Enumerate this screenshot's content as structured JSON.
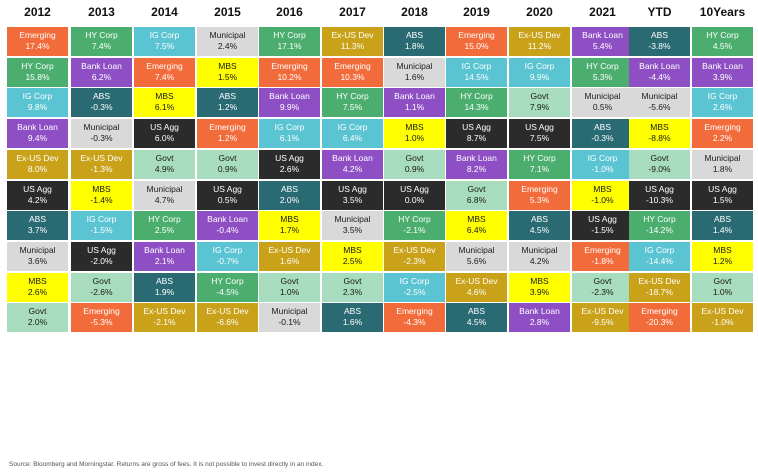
{
  "chart_data": {
    "type": "table",
    "title": "",
    "columns": [
      "2012",
      "2013",
      "2014",
      "2015",
      "2016",
      "2017",
      "2018",
      "2019",
      "2020",
      "2021",
      "YTD",
      "10Years"
    ],
    "rows": [
      [
        {
          "a": "Emerging",
          "v": "17.4%"
        },
        {
          "a": "HY Corp",
          "v": "7.4%"
        },
        {
          "a": "IG Corp",
          "v": "7.5%"
        },
        {
          "a": "Municipal",
          "v": "2.4%"
        },
        {
          "a": "HY Corp",
          "v": "17.1%"
        },
        {
          "a": "Ex-US Dev",
          "v": "11.3%"
        },
        {
          "a": "ABS",
          "v": "1.8%"
        },
        {
          "a": "Emerging",
          "v": "15.0%"
        },
        {
          "a": "Ex-US Dev",
          "v": "11.2%"
        },
        {
          "a": "Bank Loan",
          "v": "5.4%"
        },
        {
          "a": "ABS",
          "v": "-3.8%"
        },
        {
          "a": "HY Corp",
          "v": "4.5%"
        }
      ],
      [
        {
          "a": "HY Corp",
          "v": "15.8%"
        },
        {
          "a": "Bank Loan",
          "v": "6.2%"
        },
        {
          "a": "Emerging",
          "v": "7.4%"
        },
        {
          "a": "MBS",
          "v": "1.5%"
        },
        {
          "a": "Emerging",
          "v": "10.2%"
        },
        {
          "a": "Emerging",
          "v": "10.3%"
        },
        {
          "a": "Municipal",
          "v": "1.6%"
        },
        {
          "a": "IG Corp",
          "v": "14.5%"
        },
        {
          "a": "IG Corp",
          "v": "9.9%"
        },
        {
          "a": "HY Corp",
          "v": "5.3%"
        },
        {
          "a": "Bank Loan",
          "v": "-4.4%"
        },
        {
          "a": "Bank Loan",
          "v": "3.9%"
        }
      ],
      [
        {
          "a": "IG Corp",
          "v": "9.8%"
        },
        {
          "a": "ABS",
          "v": "-0.3%"
        },
        {
          "a": "MBS",
          "v": "6.1%"
        },
        {
          "a": "ABS",
          "v": "1.2%"
        },
        {
          "a": "Bank Loan",
          "v": "9.9%"
        },
        {
          "a": "HY Corp",
          "v": "7.5%"
        },
        {
          "a": "Bank Loan",
          "v": "1.1%"
        },
        {
          "a": "HY Corp",
          "v": "14.3%"
        },
        {
          "a": "Govt",
          "v": "7.9%"
        },
        {
          "a": "Municipal",
          "v": "0.5%"
        },
        {
          "a": "Municipal",
          "v": "-5.6%"
        },
        {
          "a": "IG Corp",
          "v": "2.6%"
        }
      ],
      [
        {
          "a": "Bank Loan",
          "v": "9.4%"
        },
        {
          "a": "Municipal",
          "v": "-0.3%"
        },
        {
          "a": "US Agg",
          "v": "6.0%"
        },
        {
          "a": "Emerging",
          "v": "1.2%"
        },
        {
          "a": "IG Corp",
          "v": "6.1%"
        },
        {
          "a": "IG Corp",
          "v": "6.4%"
        },
        {
          "a": "MBS",
          "v": "1.0%"
        },
        {
          "a": "US Agg",
          "v": "8.7%"
        },
        {
          "a": "US Agg",
          "v": "7.5%"
        },
        {
          "a": "ABS",
          "v": "-0.3%"
        },
        {
          "a": "MBS",
          "v": "-8.8%"
        },
        {
          "a": "Emerging",
          "v": "2.2%"
        }
      ],
      [
        {
          "a": "Ex-US Dev",
          "v": "8.0%"
        },
        {
          "a": "Ex-US Dev",
          "v": "-1.3%"
        },
        {
          "a": "Govt",
          "v": "4.9%"
        },
        {
          "a": "Govt",
          "v": "0.9%"
        },
        {
          "a": "US Agg",
          "v": "2.6%"
        },
        {
          "a": "Bank Loan",
          "v": "4.2%"
        },
        {
          "a": "Govt",
          "v": "0.9%"
        },
        {
          "a": "Bank Loan",
          "v": "8.2%"
        },
        {
          "a": "HY Corp",
          "v": "7.1%"
        },
        {
          "a": "IG Corp",
          "v": "-1.0%"
        },
        {
          "a": "Govt",
          "v": "-9.0%"
        },
        {
          "a": "Municipal",
          "v": "1.8%"
        }
      ],
      [
        {
          "a": "US Agg",
          "v": "4.2%"
        },
        {
          "a": "MBS",
          "v": "-1.4%"
        },
        {
          "a": "Municipal",
          "v": "4.7%"
        },
        {
          "a": "US Agg",
          "v": "0.5%"
        },
        {
          "a": "ABS",
          "v": "2.0%"
        },
        {
          "a": "US Agg",
          "v": "3.5%"
        },
        {
          "a": "US Agg",
          "v": "0.0%"
        },
        {
          "a": "Govt",
          "v": "6.8%"
        },
        {
          "a": "Emerging",
          "v": "5.3%"
        },
        {
          "a": "MBS",
          "v": "-1.0%"
        },
        {
          "a": "US Agg",
          "v": "-10.3%"
        },
        {
          "a": "US Agg",
          "v": "1.5%"
        }
      ],
      [
        {
          "a": "ABS",
          "v": "3.7%"
        },
        {
          "a": "IG Corp",
          "v": "-1.5%"
        },
        {
          "a": "HY Corp",
          "v": "2.5%"
        },
        {
          "a": "Bank Loan",
          "v": "-0.4%"
        },
        {
          "a": "MBS",
          "v": "1.7%"
        },
        {
          "a": "Municipal",
          "v": "3.5%"
        },
        {
          "a": "HY Corp",
          "v": "-2.1%"
        },
        {
          "a": "MBS",
          "v": "6.4%"
        },
        {
          "a": "ABS",
          "v": "4.5%"
        },
        {
          "a": "US Agg",
          "v": "-1.5%"
        },
        {
          "a": "HY Corp",
          "v": "-14.2%"
        },
        {
          "a": "ABS",
          "v": "1.4%"
        }
      ],
      [
        {
          "a": "Municipal",
          "v": "3.6%"
        },
        {
          "a": "US Agg",
          "v": "-2.0%"
        },
        {
          "a": "Bank Loan",
          "v": "2.1%"
        },
        {
          "a": "IG Corp",
          "v": "-0.7%"
        },
        {
          "a": "Ex-US Dev",
          "v": "1.6%"
        },
        {
          "a": "MBS",
          "v": "2.5%"
        },
        {
          "a": "Ex-US Dev",
          "v": "-2.3%"
        },
        {
          "a": "Municipal",
          "v": "5.6%"
        },
        {
          "a": "Municipal",
          "v": "4.2%"
        },
        {
          "a": "Emerging",
          "v": "-1.8%"
        },
        {
          "a": "IG Corp",
          "v": "-14.4%"
        },
        {
          "a": "MBS",
          "v": "1.2%"
        }
      ],
      [
        {
          "a": "MBS",
          "v": "2.6%"
        },
        {
          "a": "Govt",
          "v": "-2.6%"
        },
        {
          "a": "ABS",
          "v": "1.9%"
        },
        {
          "a": "HY Corp",
          "v": "-4.5%"
        },
        {
          "a": "Govt",
          "v": "1.0%"
        },
        {
          "a": "Govt",
          "v": "2.3%"
        },
        {
          "a": "IG Corp",
          "v": "-2.5%"
        },
        {
          "a": "Ex-US Dev",
          "v": "4.6%"
        },
        {
          "a": "MBS",
          "v": "3.9%"
        },
        {
          "a": "Govt",
          "v": "-2.3%"
        },
        {
          "a": "Ex-US Dev",
          "v": "-18.7%"
        },
        {
          "a": "Govt",
          "v": "1.0%"
        }
      ],
      [
        {
          "a": "Govt",
          "v": "2.0%"
        },
        {
          "a": "Emerging",
          "v": "-5.3%"
        },
        {
          "a": "Ex-US Dev",
          "v": "-2.1%"
        },
        {
          "a": "Ex-US Dev",
          "v": "-6.6%"
        },
        {
          "a": "Municipal",
          "v": "-0.1%"
        },
        {
          "a": "ABS",
          "v": "1.6%"
        },
        {
          "a": "Emerging",
          "v": "-4.3%"
        },
        {
          "a": "ABS",
          "v": "4.5%"
        },
        {
          "a": "Bank Loan",
          "v": "2.8%"
        },
        {
          "a": "Ex-US Dev",
          "v": "-9.5%"
        },
        {
          "a": "Emerging",
          "v": "-20.3%"
        },
        {
          "a": "Ex-US Dev",
          "v": "-1.0%"
        }
      ]
    ],
    "asset_colors": {
      "Emerging": "#f26b3a",
      "HY Corp": "#4bae6e",
      "IG Corp": "#5bc4d2",
      "Bank Loan": "#8e4fc4",
      "Ex-US Dev": "#c9a21a",
      "US Agg": "#2b2b2b",
      "ABS": "#2a6b73",
      "Municipal": "#d9d9d9",
      "MBS": "#ffff00",
      "Govt": "#a8dcbf"
    }
  },
  "footnote": "Source: Bloomberg and Morningstar. Returns are gross of fees. It is not possible to invest directly in an index."
}
